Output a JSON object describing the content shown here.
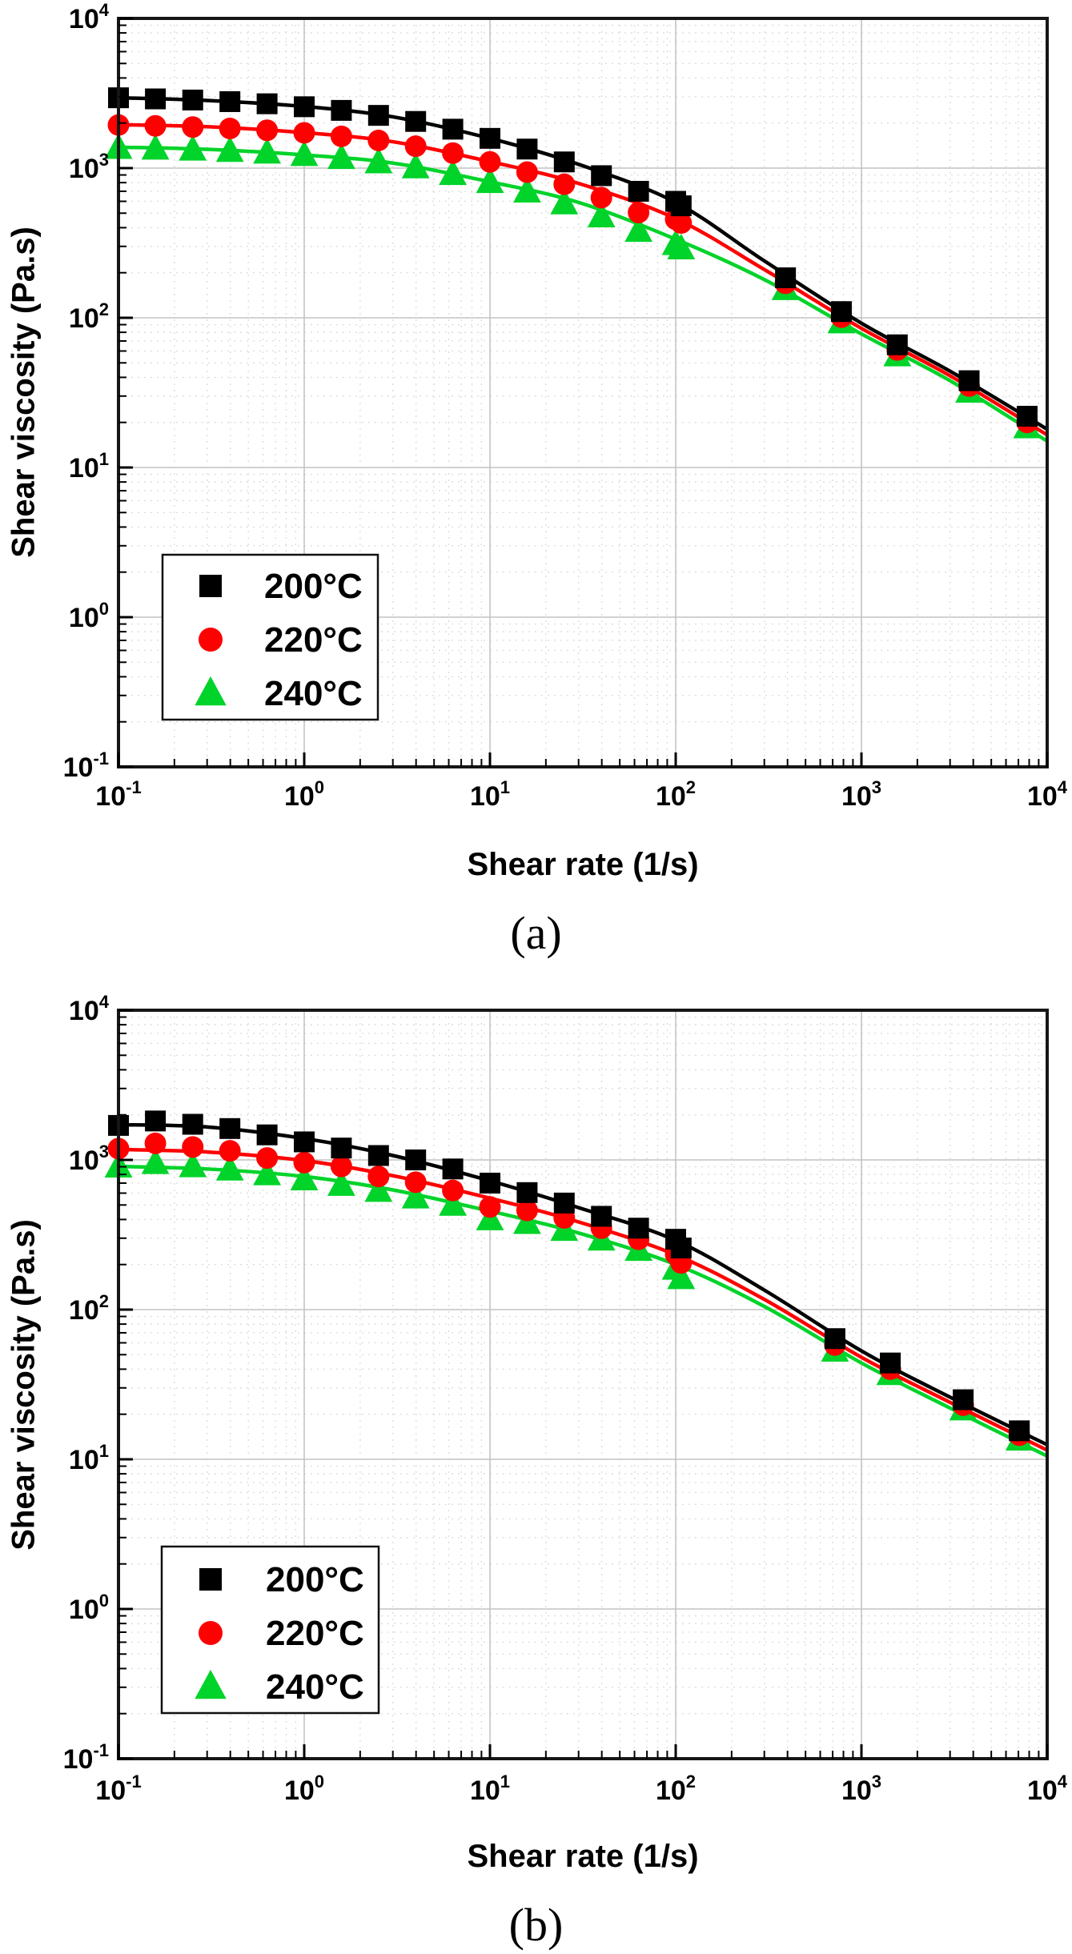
{
  "figure": {
    "background": "#ffffff"
  },
  "colors": {
    "series_200C": "#000000",
    "series_220C": "#ff0000",
    "series_240C": "#00d32a",
    "grid_major": "#c4c4c4",
    "grid_minor": "#dddddd",
    "frame": "#161616",
    "legend_border": "#111111",
    "legend_background": "#ffffff",
    "text": "#000000"
  },
  "axes": {
    "tick_base": "10",
    "x_tick_exponents": [
      "-1",
      "0",
      "1",
      "2",
      "3",
      "4"
    ],
    "y_tick_exponents": [
      "4",
      "3",
      "2",
      "1",
      "0",
      "-1"
    ]
  },
  "chart_data": [
    {
      "panel": "a",
      "caption": "(a)",
      "type": "scatter",
      "xlabel": "Shear rate (1/s)",
      "ylabel": "Shear viscosity (Pa.s)",
      "xlim": [
        0.1,
        10000
      ],
      "ylim": [
        0.1,
        10000
      ],
      "x_scale": "log",
      "y_scale": "log",
      "grid": "major-solid, minor-dotted",
      "legend_position": "lower-left",
      "series": [
        {
          "name": "200°C",
          "color": "#000000",
          "marker": "square",
          "points": [
            [
              0.1,
              2950
            ],
            [
              0.158,
              2900
            ],
            [
              0.251,
              2850
            ],
            [
              0.398,
              2780
            ],
            [
              0.631,
              2690
            ],
            [
              1,
              2570
            ],
            [
              1.585,
              2430
            ],
            [
              2.512,
              2250
            ],
            [
              3.981,
              2050
            ],
            [
              6.31,
              1820
            ],
            [
              10,
              1580
            ],
            [
              15.85,
              1340
            ],
            [
              25.12,
              1100
            ],
            [
              39.81,
              890
            ],
            [
              63.1,
              700
            ],
            [
              100,
              600
            ],
            [
              107,
              560
            ],
            [
              390,
              185
            ],
            [
              780,
              110
            ],
            [
              1560,
              66
            ],
            [
              3800,
              38
            ],
            [
              7800,
              22
            ]
          ],
          "line": [
            [
              0.1,
              2950
            ],
            [
              0.3,
              2830
            ],
            [
              1,
              2580
            ],
            [
              3,
              2200
            ],
            [
              10,
              1580
            ],
            [
              30,
              1060
            ],
            [
              100,
              590
            ],
            [
              300,
              240
            ],
            [
              1000,
              92
            ],
            [
              3000,
              44
            ],
            [
              10000,
              18
            ]
          ]
        },
        {
          "name": "220°C",
          "color": "#ff0000",
          "marker": "circle",
          "points": [
            [
              0.1,
              1940
            ],
            [
              0.158,
              1915
            ],
            [
              0.251,
              1880
            ],
            [
              0.398,
              1840
            ],
            [
              0.631,
              1790
            ],
            [
              1,
              1720
            ],
            [
              1.585,
              1630
            ],
            [
              2.512,
              1530
            ],
            [
              3.981,
              1400
            ],
            [
              6.31,
              1260
            ],
            [
              10,
              1100
            ],
            [
              15.85,
              940
            ],
            [
              25.12,
              780
            ],
            [
              39.81,
              635
            ],
            [
              63.1,
              505
            ],
            [
              100,
              455
            ],
            [
              107,
              430
            ],
            [
              390,
              170
            ],
            [
              780,
              101
            ],
            [
              1560,
              61
            ],
            [
              3800,
              35
            ],
            [
              7800,
              20
            ]
          ],
          "line": [
            [
              0.1,
              1950
            ],
            [
              0.3,
              1890
            ],
            [
              1,
              1725
            ],
            [
              3,
              1500
            ],
            [
              10,
              1105
            ],
            [
              30,
              790
            ],
            [
              100,
              460
            ],
            [
              300,
              210
            ],
            [
              1000,
              85
            ],
            [
              3000,
              41
            ],
            [
              10000,
              16.5
            ]
          ]
        },
        {
          "name": "240°C",
          "color": "#00d32a",
          "marker": "triangle",
          "points": [
            [
              0.1,
              1360
            ],
            [
              0.158,
              1345
            ],
            [
              0.251,
              1325
            ],
            [
              0.398,
              1300
            ],
            [
              0.631,
              1265
            ],
            [
              1,
              1220
            ],
            [
              1.585,
              1165
            ],
            [
              2.512,
              1090
            ],
            [
              3.981,
              1010
            ],
            [
              6.31,
              910
            ],
            [
              10,
              805
            ],
            [
              15.85,
              695
            ],
            [
              25.12,
              580
            ],
            [
              39.81,
              475
            ],
            [
              63.1,
              380
            ],
            [
              100,
              310
            ],
            [
              107,
              290
            ],
            [
              390,
              155
            ],
            [
              780,
              93
            ],
            [
              1560,
              56
            ],
            [
              3800,
              32
            ],
            [
              7800,
              18.5
            ]
          ],
          "line": [
            [
              0.1,
              1380
            ],
            [
              0.3,
              1335
            ],
            [
              1,
              1225
            ],
            [
              3,
              1080
            ],
            [
              10,
              810
            ],
            [
              30,
              590
            ],
            [
              100,
              335
            ],
            [
              300,
              180
            ],
            [
              1000,
              78
            ],
            [
              3000,
              38
            ],
            [
              10000,
              15
            ]
          ]
        }
      ]
    },
    {
      "panel": "b",
      "caption": "(b)",
      "type": "scatter",
      "xlabel": "Shear rate (1/s)",
      "ylabel": "Shear viscosity (Pa.s)",
      "xlim": [
        0.1,
        10000
      ],
      "ylim": [
        0.1,
        10000
      ],
      "x_scale": "log",
      "y_scale": "log",
      "grid": "major-solid, minor-dotted",
      "legend_position": "lower-left",
      "series": [
        {
          "name": "200°C",
          "color": "#000000",
          "marker": "square",
          "points": [
            [
              0.1,
              1700
            ],
            [
              0.158,
              1820
            ],
            [
              0.251,
              1730
            ],
            [
              0.398,
              1620
            ],
            [
              0.631,
              1470
            ],
            [
              1,
              1320
            ],
            [
              1.585,
              1200
            ],
            [
              2.512,
              1070
            ],
            [
              3.981,
              1000
            ],
            [
              6.31,
              870
            ],
            [
              10,
              700
            ],
            [
              15.85,
              605
            ],
            [
              25.12,
              515
            ],
            [
              39.81,
              420
            ],
            [
              63.1,
              350
            ],
            [
              100,
              295
            ],
            [
              107,
              258
            ],
            [
              720,
              64
            ],
            [
              1430,
              44
            ],
            [
              3530,
              25
            ],
            [
              7080,
              15.5
            ]
          ],
          "line": [
            [
              0.1,
              1720
            ],
            [
              0.3,
              1660
            ],
            [
              1,
              1390
            ],
            [
              3,
              1070
            ],
            [
              10,
              725
            ],
            [
              30,
              480
            ],
            [
              100,
              290
            ],
            [
              300,
              135
            ],
            [
              1000,
              53
            ],
            [
              3000,
              26
            ],
            [
              10000,
              12.5
            ]
          ]
        },
        {
          "name": "220°C",
          "color": "#ff0000",
          "marker": "circle",
          "points": [
            [
              0.1,
              1190
            ],
            [
              0.158,
              1290
            ],
            [
              0.251,
              1220
            ],
            [
              0.398,
              1150
            ],
            [
              0.631,
              1030
            ],
            [
              1,
              960
            ],
            [
              1.585,
              905
            ],
            [
              2.512,
              775
            ],
            [
              3.981,
              710
            ],
            [
              6.31,
              625
            ],
            [
              10,
              485
            ],
            [
              15.85,
              460
            ],
            [
              25.12,
              410
            ],
            [
              39.81,
              350
            ],
            [
              63.1,
              295
            ],
            [
              100,
              234
            ],
            [
              107,
              205
            ],
            [
              720,
              58
            ],
            [
              1430,
              40
            ],
            [
              3530,
              23
            ],
            [
              7080,
              14.5
            ]
          ],
          "line": [
            [
              0.1,
              1175
            ],
            [
              0.3,
              1130
            ],
            [
              1,
              990
            ],
            [
              3,
              785
            ],
            [
              10,
              555
            ],
            [
              30,
              385
            ],
            [
              100,
              232
            ],
            [
              300,
              117
            ],
            [
              1000,
              48
            ],
            [
              3000,
              24
            ],
            [
              10000,
              11.5
            ]
          ]
        },
        {
          "name": "240°C",
          "color": "#00d32a",
          "marker": "triangle",
          "points": [
            [
              0.1,
              900
            ],
            [
              0.158,
              950
            ],
            [
              0.251,
              905
            ],
            [
              0.398,
              860
            ],
            [
              0.631,
              800
            ],
            [
              1,
              740
            ],
            [
              1.585,
              680
            ],
            [
              2.512,
              620
            ],
            [
              3.981,
              560
            ],
            [
              6.31,
              500
            ],
            [
              10,
              400
            ],
            [
              15.85,
              378
            ],
            [
              25.12,
              340
            ],
            [
              39.81,
              293
            ],
            [
              63.1,
              250
            ],
            [
              100,
              187
            ],
            [
              107,
              162
            ],
            [
              720,
              53
            ],
            [
              1430,
              37
            ],
            [
              3530,
              21.5
            ],
            [
              7080,
              13.5
            ]
          ],
          "line": [
            [
              0.1,
              905
            ],
            [
              0.3,
              870
            ],
            [
              1,
              775
            ],
            [
              3,
              630
            ],
            [
              10,
              455
            ],
            [
              30,
              325
            ],
            [
              100,
              200
            ],
            [
              300,
              105
            ],
            [
              1000,
              44
            ],
            [
              3000,
              22
            ],
            [
              10000,
              10.5
            ]
          ]
        }
      ]
    }
  ]
}
